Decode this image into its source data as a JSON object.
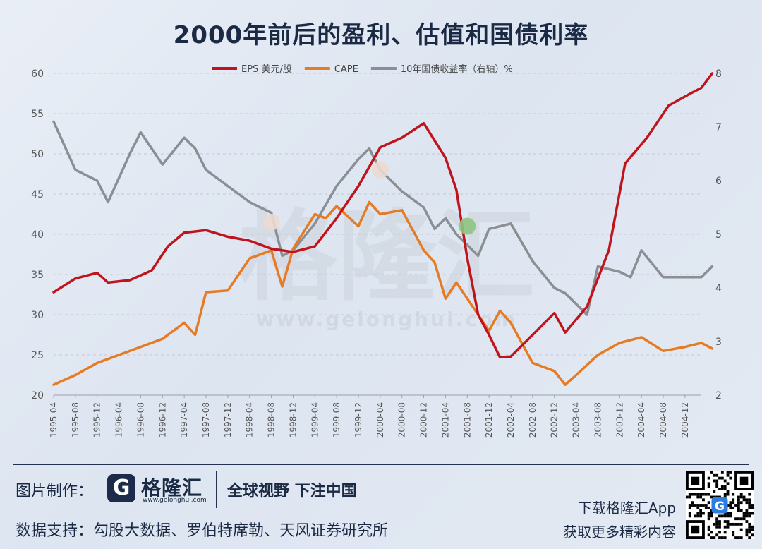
{
  "title": "2000年前后的盈利、估值和国债利率",
  "chart_data": {
    "type": "line",
    "title": "2000年前后的盈利、估值和国债利率",
    "xlabel": "",
    "ylabel": "",
    "ylim": [
      20,
      60
    ],
    "y2lim": [
      2,
      8
    ],
    "yticks": [
      "20",
      "25",
      "30",
      "35",
      "40",
      "45",
      "50",
      "55",
      "60"
    ],
    "y2ticks": [
      "2",
      "3",
      "4",
      "5",
      "6",
      "7",
      "8"
    ],
    "x_labels": [
      "1995-04",
      "1995-08",
      "1995-12",
      "1996-04",
      "1996-08",
      "1996-12",
      "1997-04",
      "1997-08",
      "1997-12",
      "1998-04",
      "1998-08",
      "1998-12",
      "1999-04",
      "1999-08",
      "1999-12",
      "2000-04",
      "2000-08",
      "2000-12",
      "2001-04",
      "2001-08",
      "2001-12",
      "2002-04",
      "2002-08",
      "2002-12",
      "2003-04",
      "2003-08",
      "2003-12",
      "2004-04",
      "2004-08",
      "2004-12"
    ],
    "x_start": "1995-04",
    "x_end": "2005-03",
    "legend_position": "top",
    "grid": "horizontal dashed",
    "series": [
      {
        "name": "EPS 美元/股",
        "axis": "left",
        "color": "#c0141c",
        "points": [
          [
            "1995-04",
            32.8
          ],
          [
            "1995-08",
            34.5
          ],
          [
            "1995-12",
            35.2
          ],
          [
            "1996-02",
            34.0
          ],
          [
            "1996-06",
            34.3
          ],
          [
            "1996-10",
            35.5
          ],
          [
            "1997-01",
            38.5
          ],
          [
            "1997-04",
            40.2
          ],
          [
            "1997-08",
            40.5
          ],
          [
            "1997-12",
            39.7
          ],
          [
            "1998-04",
            39.2
          ],
          [
            "1998-08",
            38.2
          ],
          [
            "1998-12",
            37.8
          ],
          [
            "1999-04",
            38.5
          ],
          [
            "1999-08",
            42.0
          ],
          [
            "1999-12",
            46.0
          ],
          [
            "2000-04",
            50.8
          ],
          [
            "2000-08",
            52.0
          ],
          [
            "2000-12",
            53.8
          ],
          [
            "2001-04",
            49.5
          ],
          [
            "2001-06",
            45.5
          ],
          [
            "2001-08",
            37.0
          ],
          [
            "2001-10",
            30.0
          ],
          [
            "2001-12",
            27.5
          ],
          [
            "2002-02",
            24.7
          ],
          [
            "2002-04",
            24.8
          ],
          [
            "2002-08",
            27.5
          ],
          [
            "2002-12",
            30.2
          ],
          [
            "2003-02",
            27.8
          ],
          [
            "2003-06",
            31.0
          ],
          [
            "2003-10",
            38.0
          ],
          [
            "2004-01",
            48.8
          ],
          [
            "2004-05",
            52.0
          ],
          [
            "2004-09",
            56.0
          ],
          [
            "2005-01",
            57.5
          ],
          [
            "2005-03",
            58.2
          ],
          [
            "2005-05",
            60.0
          ]
        ]
      },
      {
        "name": "CAPE",
        "axis": "left",
        "color": "#e57b25",
        "points": [
          [
            "1995-04",
            21.3
          ],
          [
            "1995-08",
            22.5
          ],
          [
            "1995-12",
            24.0
          ],
          [
            "1996-04",
            25.0
          ],
          [
            "1996-08",
            26.0
          ],
          [
            "1996-12",
            27.0
          ],
          [
            "1997-04",
            29.0
          ],
          [
            "1997-06",
            27.5
          ],
          [
            "1997-08",
            32.8
          ],
          [
            "1997-12",
            33.0
          ],
          [
            "1998-04",
            37.0
          ],
          [
            "1998-08",
            38.0
          ],
          [
            "1998-10",
            33.5
          ],
          [
            "1998-12",
            38.2
          ],
          [
            "1999-04",
            42.5
          ],
          [
            "1999-06",
            42.0
          ],
          [
            "1999-08",
            43.5
          ],
          [
            "1999-12",
            41.0
          ],
          [
            "2000-02",
            44.0
          ],
          [
            "2000-04",
            42.5
          ],
          [
            "2000-08",
            43.0
          ],
          [
            "2000-12",
            38.0
          ],
          [
            "2001-02",
            36.5
          ],
          [
            "2001-04",
            32.0
          ],
          [
            "2001-06",
            34.0
          ],
          [
            "2001-08",
            32.0
          ],
          [
            "2001-12",
            28.0
          ],
          [
            "2002-02",
            30.5
          ],
          [
            "2002-04",
            29.0
          ],
          [
            "2002-08",
            24.0
          ],
          [
            "2002-12",
            23.0
          ],
          [
            "2003-02",
            21.3
          ],
          [
            "2003-04",
            22.5
          ],
          [
            "2003-08",
            25.0
          ],
          [
            "2003-12",
            26.5
          ],
          [
            "2004-04",
            27.2
          ],
          [
            "2004-08",
            25.5
          ],
          [
            "2004-12",
            26.0
          ],
          [
            "2005-03",
            26.5
          ],
          [
            "2005-05",
            25.8
          ]
        ]
      },
      {
        "name": "10年国债收益率（右轴）%",
        "axis": "right",
        "color": "#8b8e92",
        "points": [
          [
            "1995-04",
            7.1
          ],
          [
            "1995-08",
            6.2
          ],
          [
            "1995-12",
            6.0
          ],
          [
            "1996-02",
            5.6
          ],
          [
            "1996-06",
            6.5
          ],
          [
            "1996-08",
            6.9
          ],
          [
            "1996-10",
            6.6
          ],
          [
            "1996-12",
            6.3
          ],
          [
            "1997-04",
            6.8
          ],
          [
            "1997-06",
            6.6
          ],
          [
            "1997-08",
            6.2
          ],
          [
            "1997-12",
            5.9
          ],
          [
            "1998-04",
            5.6
          ],
          [
            "1998-08",
            5.4
          ],
          [
            "1998-10",
            4.6
          ],
          [
            "1998-12",
            4.7
          ],
          [
            "1999-04",
            5.2
          ],
          [
            "1999-08",
            5.9
          ],
          [
            "1999-12",
            6.4
          ],
          [
            "2000-02",
            6.6
          ],
          [
            "2000-04",
            6.2
          ],
          [
            "2000-06",
            6.0
          ],
          [
            "2000-08",
            5.8
          ],
          [
            "2000-12",
            5.5
          ],
          [
            "2001-02",
            5.1
          ],
          [
            "2001-04",
            5.3
          ],
          [
            "2001-06",
            5.0
          ],
          [
            "2001-08",
            4.8
          ],
          [
            "2001-10",
            4.6
          ],
          [
            "2001-12",
            5.1
          ],
          [
            "2002-04",
            5.2
          ],
          [
            "2002-08",
            4.5
          ],
          [
            "2002-12",
            4.0
          ],
          [
            "2003-02",
            3.9
          ],
          [
            "2003-04",
            3.7
          ],
          [
            "2003-06",
            3.5
          ],
          [
            "2003-08",
            4.4
          ],
          [
            "2003-12",
            4.3
          ],
          [
            "2004-02",
            4.2
          ],
          [
            "2004-04",
            4.7
          ],
          [
            "2004-08",
            4.2
          ],
          [
            "2004-12",
            4.2
          ],
          [
            "2005-03",
            4.2
          ],
          [
            "2005-05",
            4.4
          ]
        ]
      }
    ],
    "markers": [
      {
        "x": "1998-08",
        "y": 41.5,
        "axis": "left",
        "color": "#ebd9d0"
      },
      {
        "x": "2000-04",
        "y": 48.0,
        "axis": "left",
        "color": "#ebd9d0"
      },
      {
        "x": "2001-08",
        "y": 41.0,
        "axis": "left",
        "color": "#8fc47f"
      }
    ],
    "watermark": "格隆汇 www.gelonghui.com"
  },
  "footer": {
    "credit_label": "图片制作：",
    "logo_glyph": "G",
    "logo_text": "格隆汇",
    "logo_url": "www.gelonghui.com",
    "slogan": "全球视野 下注中国",
    "data_support": "数据支持：勾股大数据、罗伯特席勒、天风证券研究所",
    "download": "下载格隆汇App",
    "more": "获取更多精彩内容"
  }
}
